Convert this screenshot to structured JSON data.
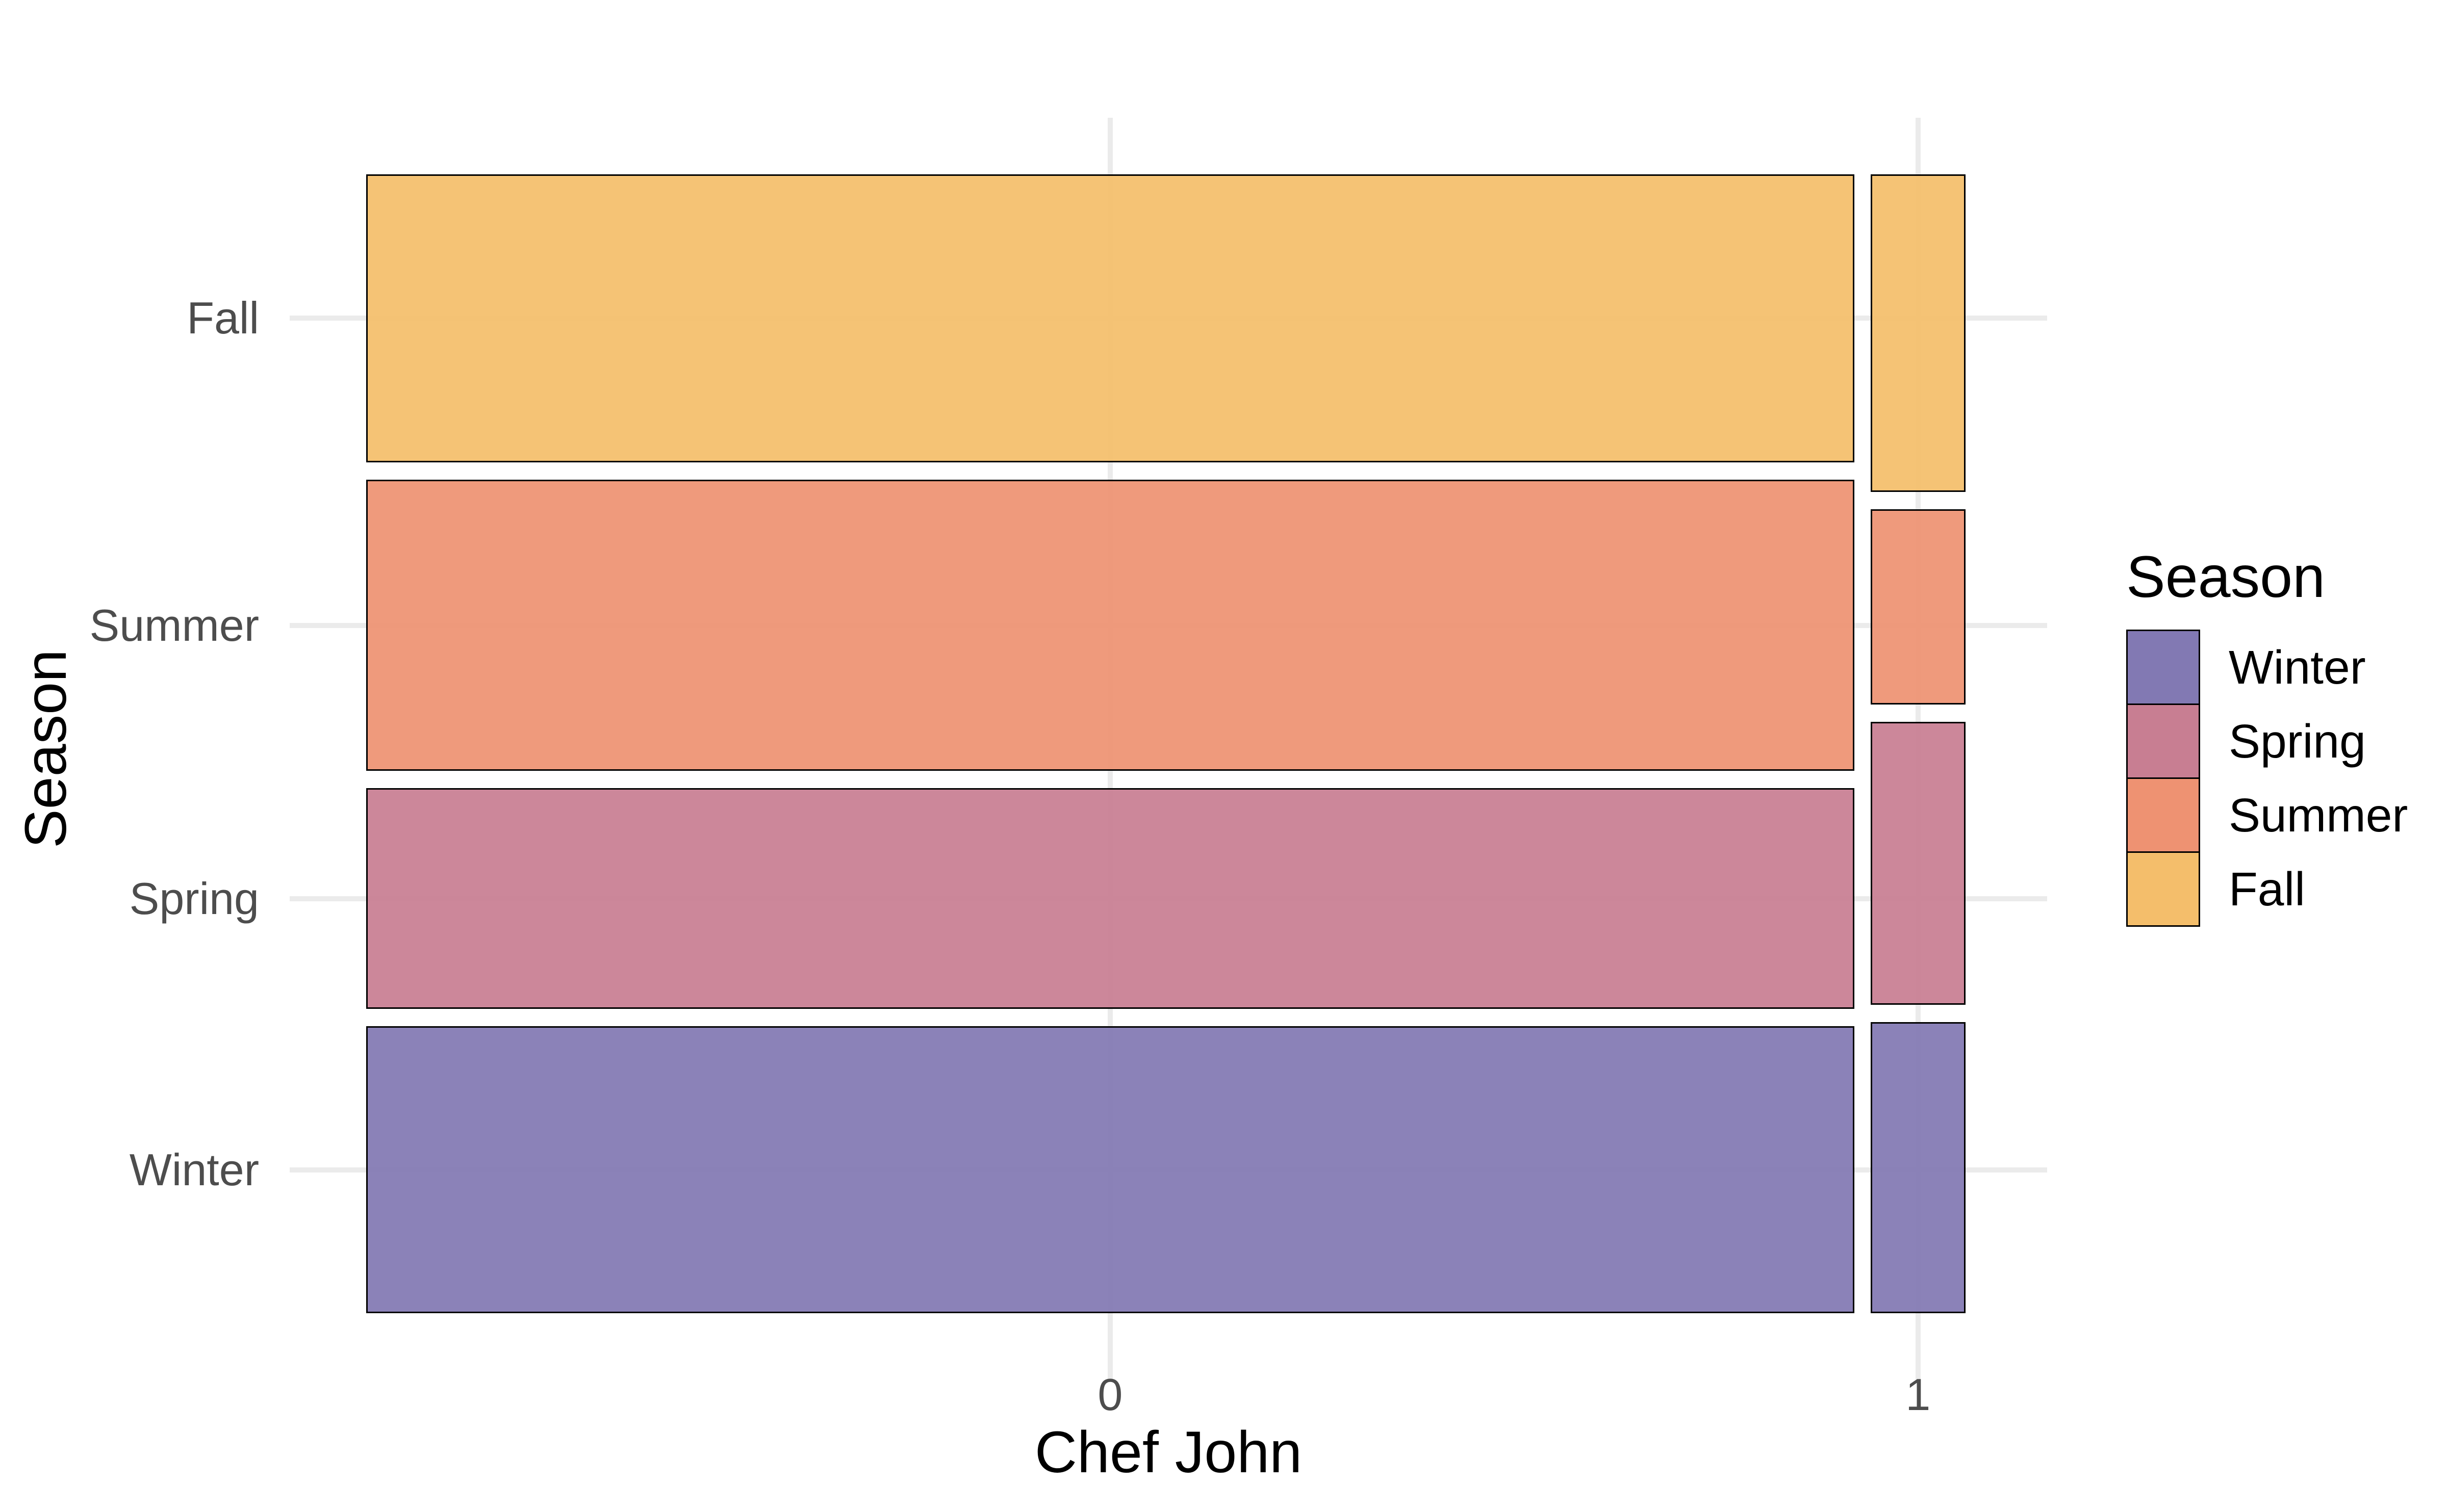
{
  "figure": {
    "background": "#FFFFFF"
  },
  "axes": {
    "x_title": "Chef John",
    "y_title": "Season",
    "x_tick_labels": [
      "0",
      "1"
    ],
    "y_tick_labels_top_to_bottom": [
      "Fall",
      "Summer",
      "Spring",
      "Winter"
    ]
  },
  "legend": {
    "title": "Season",
    "entries": [
      {
        "label": "Winter",
        "color": "#8279B3"
      },
      {
        "label": "Spring",
        "color": "#C87E92"
      },
      {
        "label": "Summer",
        "color": "#EE9272"
      },
      {
        "label": "Fall",
        "color": "#F4BE6B"
      }
    ]
  },
  "chart_data": {
    "type": "mosaic",
    "x_variable": "Chef John",
    "y_variable": "Season",
    "x_categories": [
      "0",
      "1"
    ],
    "y_categories": [
      "Winter",
      "Spring",
      "Summer",
      "Fall"
    ],
    "column_width_shares": [
      0.94,
      0.06
    ],
    "columns": [
      {
        "x": "0",
        "segments_top_to_bottom": [
          {
            "season": "Fall",
            "share": 0.265
          },
          {
            "season": "Summer",
            "share": 0.268
          },
          {
            "season": "Spring",
            "share": 0.203
          },
          {
            "season": "Winter",
            "share": 0.264
          }
        ]
      },
      {
        "x": "1",
        "segments_top_to_bottom": [
          {
            "season": "Fall",
            "share": 0.292
          },
          {
            "season": "Summer",
            "share": 0.18
          },
          {
            "season": "Spring",
            "share": 0.26
          },
          {
            "season": "Winter",
            "share": 0.268
          }
        ]
      }
    ],
    "colors": {
      "Winter": "#8279B3",
      "Spring": "#C87E92",
      "Summer": "#EE9272",
      "Fall": "#F4BE6B"
    },
    "style": {
      "gridline_color": "#EBEBEB",
      "tick_text_color": "#4D4D4D",
      "title_text_color": "#000000",
      "bar_border_color": "#000000",
      "legend_position": "right",
      "grid": true
    }
  }
}
